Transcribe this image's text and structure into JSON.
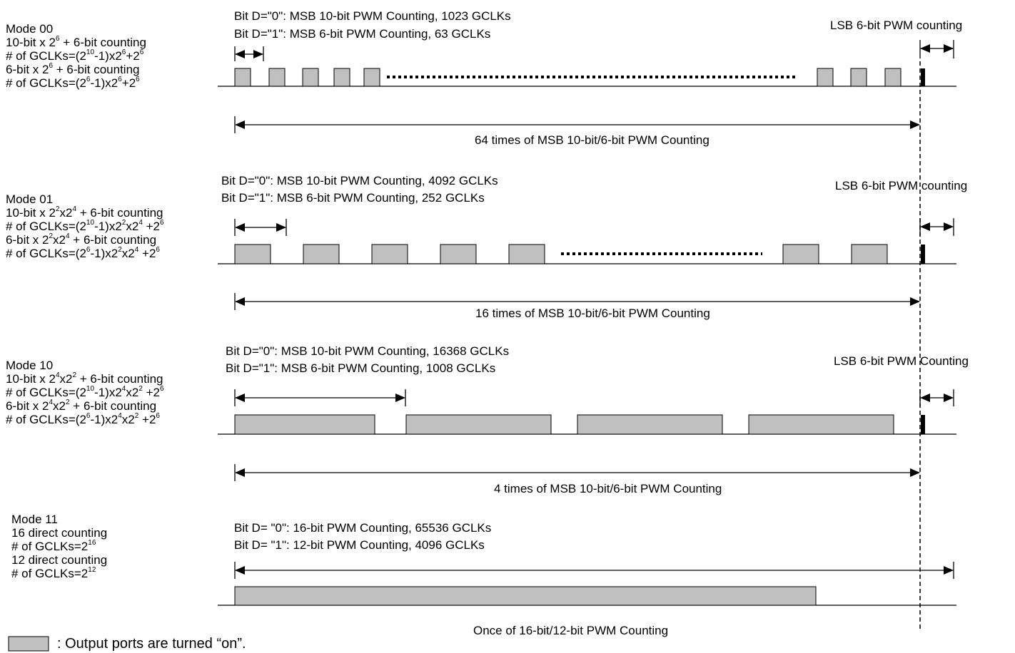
{
  "modes": [
    {
      "title": "Mode 00",
      "lines": [
        [
          "10-bit x 2",
          "6",
          " + 6-bit counting"
        ],
        [
          "# of GCLKs=(2",
          "10",
          "-1)x2",
          "6",
          "+2",
          "6"
        ],
        [
          "6-bit x 2",
          "6",
          " + 6-bit counting"
        ],
        [
          "# of GCLKs=(2",
          "6",
          "-1)x2",
          "6",
          "+2",
          "6"
        ]
      ],
      "bitd0": "Bit D=\"0\": MSB 10-bit PWM Counting, 1023 GCLKs",
      "bitd1": "Bit D=\"1\": MSB 6-bit PWM Counting, 63 GCLKs",
      "lsb": "LSB 6-bit PWM counting",
      "span": "64 times of MSB 10-bit/6-bit PWM Counting"
    },
    {
      "title": "Mode 01",
      "lines": [
        [
          "10-bit x 2",
          "2",
          "x2",
          "4",
          " + 6-bit counting"
        ],
        [
          "# of GCLKs=(2",
          "10",
          "-1)x2",
          "2",
          "x2",
          "4",
          " +2",
          "6"
        ],
        [
          "6-bit x 2",
          "2",
          "x2",
          "4",
          " + 6-bit counting"
        ],
        [
          "# of GCLKs=(2",
          "6",
          "-1)x2",
          "2",
          "x2",
          "4",
          " +2",
          "6"
        ]
      ],
      "bitd0": "Bit D=\"0\": MSB 10-bit PWM Counting, 4092 GCLKs",
      "bitd1": "Bit D=\"1\": MSB 6-bit PWM Counting, 252 GCLKs",
      "lsb": "LSB 6-bit PWM counting",
      "span": "16 times of MSB 10-bit/6-bit PWM Counting"
    },
    {
      "title": "Mode 10",
      "lines": [
        [
          "10-bit x 2",
          "4",
          "x2",
          "2",
          " + 6-bit counting"
        ],
        [
          "# of GCLKs=(2",
          "10",
          "-1)x2",
          "4",
          "x2",
          "2",
          " +2",
          "6"
        ],
        [
          "6-bit x 2",
          "4",
          "x2",
          "2",
          " + 6-bit counting"
        ],
        [
          "# of GCLKs=(2",
          "6",
          "-1)x2",
          "4",
          "x2",
          "2",
          " +2",
          "6"
        ]
      ],
      "bitd0": "Bit D=\"0\": MSB 10-bit PWM Counting, 16368 GCLKs",
      "bitd1": "Bit D=\"1\": MSB 6-bit PWM Counting, 1008 GCLKs",
      "lsb": "LSB 6-bit PWM Counting",
      "span": "4 times of MSB 10-bit/6-bit PWM Counting"
    },
    {
      "title": "Mode 11",
      "lines": [
        [
          "16 direct counting"
        ],
        [
          "# of GCLKs=2",
          "16"
        ],
        [
          "12 direct counting"
        ],
        [
          "# of GCLKs=2",
          "12"
        ]
      ],
      "bitd0": "Bit D= \"0\": 16-bit PWM Counting, 65536 GCLKs",
      "bitd1": "Bit D= \"1\": 12-bit PWM Counting, 4096 GCLKs",
      "span": "Once of 16-bit/12-bit PWM Counting"
    }
  ],
  "legend": {
    "text": ": Output ports are turned “on”.",
    "swatch_color": "#c0c0c0"
  }
}
